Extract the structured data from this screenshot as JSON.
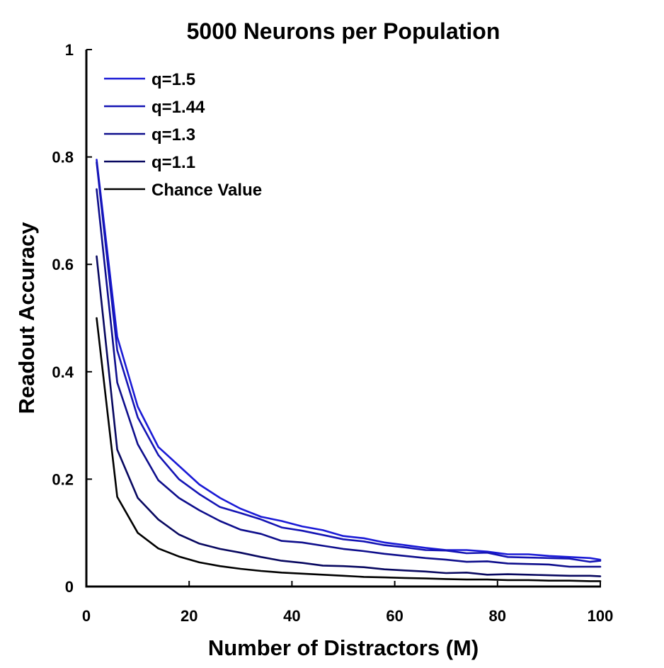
{
  "chart_data": {
    "type": "line",
    "title": "5000 Neurons per Population",
    "xlabel": "Number of Distractors (M)",
    "ylabel": "Readout Accuracy",
    "xlim": [
      0,
      100
    ],
    "ylim": [
      0,
      1
    ],
    "x_ticks": [
      "0",
      "20",
      "40",
      "60",
      "80",
      "100"
    ],
    "y_ticks": [
      "0",
      "0.2",
      "0.4",
      "0.6",
      "0.8",
      "1"
    ],
    "grid": false,
    "legend_position": "top-left",
    "x": [
      2,
      6,
      10,
      14,
      18,
      22,
      26,
      30,
      34,
      38,
      42,
      46,
      50,
      54,
      58,
      62,
      66,
      70,
      74,
      78,
      82,
      86,
      90,
      94,
      98,
      100
    ],
    "series": [
      {
        "name": "q=1.5",
        "color": "#1a1ad6",
        "values": [
          0.795,
          0.465,
          0.335,
          0.26,
          0.225,
          0.19,
          0.165,
          0.145,
          0.13,
          0.122,
          0.112,
          0.105,
          0.094,
          0.09,
          0.082,
          0.077,
          0.072,
          0.068,
          0.068,
          0.065,
          0.06,
          0.06,
          0.057,
          0.055,
          0.053,
          0.05
        ]
      },
      {
        "name": "q=1.44",
        "color": "#1414b4",
        "values": [
          0.79,
          0.44,
          0.315,
          0.245,
          0.2,
          0.172,
          0.148,
          0.137,
          0.125,
          0.11,
          0.104,
          0.096,
          0.088,
          0.084,
          0.077,
          0.073,
          0.068,
          0.067,
          0.062,
          0.063,
          0.055,
          0.054,
          0.053,
          0.052,
          0.046,
          0.048
        ]
      },
      {
        "name": "q=1.3",
        "color": "#0e0e8c",
        "values": [
          0.74,
          0.38,
          0.265,
          0.198,
          0.165,
          0.142,
          0.122,
          0.106,
          0.098,
          0.085,
          0.082,
          0.076,
          0.07,
          0.066,
          0.061,
          0.057,
          0.053,
          0.05,
          0.046,
          0.047,
          0.043,
          0.042,
          0.041,
          0.037,
          0.037,
          0.037
        ]
      },
      {
        "name": "q=1.1",
        "color": "#080860",
        "values": [
          0.615,
          0.255,
          0.165,
          0.125,
          0.097,
          0.08,
          0.07,
          0.063,
          0.055,
          0.048,
          0.044,
          0.039,
          0.038,
          0.036,
          0.032,
          0.03,
          0.028,
          0.025,
          0.026,
          0.022,
          0.023,
          0.022,
          0.021,
          0.02,
          0.02,
          0.019
        ]
      },
      {
        "name": "Chance Value",
        "color": "#000000",
        "values": [
          0.5,
          0.167,
          0.1,
          0.071,
          0.056,
          0.045,
          0.038,
          0.033,
          0.029,
          0.026,
          0.024,
          0.022,
          0.02,
          0.018,
          0.017,
          0.016,
          0.015,
          0.014,
          0.013,
          0.013,
          0.012,
          0.012,
          0.011,
          0.011,
          0.01,
          0.01
        ]
      }
    ]
  }
}
